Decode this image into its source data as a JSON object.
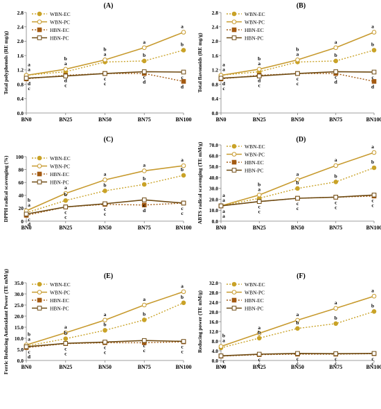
{
  "colors": {
    "wbn_ec": "#c9a227",
    "wbn_pc": "#c79a2e",
    "hbn_ec": "#a35a12",
    "hbn_pc": "#6e4a12",
    "axis": "#7f7f7f",
    "text": "#000000"
  },
  "chart_data": [
    {
      "panel": "(A)",
      "type": "line",
      "categories": [
        "BN0",
        "BN25",
        "BN50",
        "BN75",
        "BN100"
      ],
      "ylabel": "Total polyphenols (RE mg/g)",
      "ylim": [
        0,
        2.8
      ],
      "yticks": [
        "0.0",
        "0.4",
        "0.8",
        "1.2",
        "1.6",
        "2.0",
        "2.4",
        "2.8"
      ],
      "grid": false,
      "legend_position": "top-left",
      "series": [
        {
          "name": "WBN-EC",
          "values": [
            1.05,
            1.15,
            1.42,
            1.45,
            1.75
          ],
          "letters": [
            "a",
            "b",
            "b",
            "b",
            "b"
          ]
        },
        {
          "name": "WBN-PC",
          "values": [
            1.05,
            1.22,
            1.48,
            1.82,
            2.25
          ],
          "letters": [
            "a",
            "a",
            "a",
            "a",
            "a"
          ]
        },
        {
          "name": "HBN-EC",
          "values": [
            0.95,
            1.05,
            1.1,
            1.1,
            0.88
          ],
          "letters": [
            "c",
            "d",
            "c",
            "d",
            "d"
          ]
        },
        {
          "name": "HBN-PC",
          "values": [
            0.97,
            1.03,
            1.1,
            1.15,
            1.14
          ],
          "letters": [
            "d",
            "c",
            "c",
            "c",
            "c"
          ]
        }
      ]
    },
    {
      "panel": "(B)",
      "type": "line",
      "categories": [
        "BN0",
        "BN25",
        "BN50",
        "BN75",
        "BN100"
      ],
      "ylabel": "Total flavonoids (RE mg/g)",
      "ylim": [
        0,
        2.8
      ],
      "yticks": [
        "0.0",
        "0.4",
        "0.8",
        "1.2",
        "1.6",
        "2.0",
        "2.4",
        "2.8"
      ],
      "grid": false,
      "legend_position": "top-left",
      "series": [
        {
          "name": "WBN-EC",
          "values": [
            1.05,
            1.15,
            1.42,
            1.45,
            1.75
          ],
          "letters": [
            "a",
            "b",
            "b",
            "b",
            "b"
          ]
        },
        {
          "name": "WBN-PC",
          "values": [
            1.05,
            1.22,
            1.48,
            1.82,
            2.25
          ],
          "letters": [
            "a",
            "a",
            "a",
            "a",
            "a"
          ]
        },
        {
          "name": "HBN-EC",
          "values": [
            0.95,
            1.05,
            1.1,
            1.1,
            0.88
          ],
          "letters": [
            "c",
            "d",
            "c",
            "d",
            "d"
          ]
        },
        {
          "name": "HBN-PC",
          "values": [
            0.97,
            1.03,
            1.1,
            1.15,
            1.14
          ],
          "letters": [
            "d",
            "c",
            "c",
            "c",
            "c"
          ]
        }
      ]
    },
    {
      "panel": "(C)",
      "type": "line",
      "categories": [
        "BN0",
        "BN25",
        "BN50",
        "BN75",
        "BN100"
      ],
      "ylabel": "DPPH radical scavenging (%)",
      "ylim": [
        0,
        100
      ],
      "yticks": [
        "0",
        "20",
        "40",
        "60",
        "80",
        "100"
      ],
      "grid": false,
      "legend_position": "top-left",
      "series": [
        {
          "name": "WBN-EC",
          "values": [
            13,
            32,
            47,
            57,
            71
          ],
          "letters": [
            "b",
            "b",
            "b",
            "b",
            "b"
          ]
        },
        {
          "name": "WBN-PC",
          "values": [
            16,
            43,
            64,
            78,
            86
          ],
          "letters": [
            "a",
            "a",
            "a",
            "a",
            "a"
          ]
        },
        {
          "name": "HBN-EC",
          "values": [
            9,
            22,
            26,
            25,
            28
          ],
          "letters": [
            "d",
            "c",
            "c",
            "d",
            "c"
          ]
        },
        {
          "name": "HBN-PC",
          "values": [
            11,
            22,
            27,
            33,
            28
          ],
          "letters": [
            "c",
            "c",
            "c",
            "c",
            "c"
          ]
        }
      ]
    },
    {
      "panel": "(D)",
      "type": "line",
      "categories": [
        "BN0",
        "BN25",
        "BN50",
        "BN75",
        "BN100"
      ],
      "ylabel": "ABTS radical scavenging (TE mM/g)",
      "ylim": [
        0,
        70
      ],
      "yticks": [
        "0.0",
        "10.0",
        "20.0",
        "30.0",
        "40.0",
        "50.0",
        "60.0",
        "70.0"
      ],
      "grid": false,
      "legend_position": "top-left",
      "series": [
        {
          "name": "WBN-EC",
          "values": [
            14,
            21,
            30,
            36,
            49
          ],
          "letters": [
            "a",
            "b",
            "b",
            "b",
            "b"
          ]
        },
        {
          "name": "WBN-PC",
          "values": [
            14,
            24,
            38,
            51,
            63
          ],
          "letters": [
            "a",
            "a",
            "a",
            "a",
            "a"
          ]
        },
        {
          "name": "HBN-EC",
          "values": [
            14,
            18,
            21,
            22,
            23
          ],
          "letters": [
            "a",
            "c",
            "c",
            "c",
            "c"
          ]
        },
        {
          "name": "HBN-PC",
          "values": [
            14,
            18,
            21,
            22,
            24
          ],
          "letters": [
            "a",
            "c",
            "c",
            "c",
            "c"
          ]
        }
      ]
    },
    {
      "panel": "(E)",
      "type": "line",
      "categories": [
        "BN0",
        "BN25",
        "BN50",
        "BN75",
        "BN100"
      ],
      "ylabel": "Ferric Reducing Antioxidant Power (TE mM/g)",
      "ylim": [
        0,
        35
      ],
      "yticks": [
        "0.0",
        "5.0",
        "10.0",
        "15.0",
        "20.0",
        "25.0",
        "30.0",
        "35.0"
      ],
      "grid": false,
      "legend_position": "top-left",
      "series": [
        {
          "name": "WBN-EC",
          "values": [
            6.5,
            9.8,
            13.6,
            18.3,
            26
          ],
          "letters": [
            "b",
            "b",
            "b",
            "b",
            "b"
          ]
        },
        {
          "name": "WBN-PC",
          "values": [
            7,
            12.5,
            18.2,
            25,
            31
          ],
          "letters": [
            "a",
            "a",
            "a",
            "a",
            "a"
          ]
        },
        {
          "name": "HBN-EC",
          "values": [
            5.8,
            7.6,
            8.0,
            8.0,
            8.4
          ],
          "letters": [
            "d",
            "c",
            "c",
            "c",
            "c"
          ]
        },
        {
          "name": "HBN-PC",
          "values": [
            6.2,
            7.7,
            8.3,
            9.0,
            8.6
          ],
          "letters": [
            "c",
            "c",
            "c",
            "c",
            "c"
          ]
        }
      ]
    },
    {
      "panel": "(F)",
      "type": "line",
      "categories": [
        "BN0",
        "BN25",
        "BN50",
        "BN75",
        "BN100"
      ],
      "ylabel": "Reducing power (TE mM/g)",
      "ylim": [
        0,
        32
      ],
      "yticks": [
        "0.0",
        "4.0",
        "8.0",
        "12.0",
        "16.0",
        "20.0",
        "24.0",
        "28.0",
        "32.0"
      ],
      "grid": false,
      "legend_position": "top-left",
      "series": [
        {
          "name": "WBN-EC",
          "values": [
            5.2,
            9.2,
            13.2,
            15.2,
            20.2
          ],
          "letters": [
            "b",
            "b",
            "b",
            "b",
            "b"
          ]
        },
        {
          "name": "WBN-PC",
          "values": [
            5.8,
            11.2,
            16.6,
            21.5,
            26.5
          ],
          "letters": [
            "a",
            "a",
            "a",
            "a",
            "a"
          ]
        },
        {
          "name": "HBN-EC",
          "values": [
            1.8,
            2.4,
            2.6,
            2.6,
            2.8
          ],
          "letters": [
            "c",
            "c",
            "c",
            "c",
            "c"
          ]
        },
        {
          "name": "HBN-PC",
          "values": [
            1.9,
            2.6,
            2.9,
            2.8,
            2.9
          ],
          "letters": [
            "c",
            "c",
            "c",
            "c",
            "c"
          ]
        }
      ]
    }
  ]
}
